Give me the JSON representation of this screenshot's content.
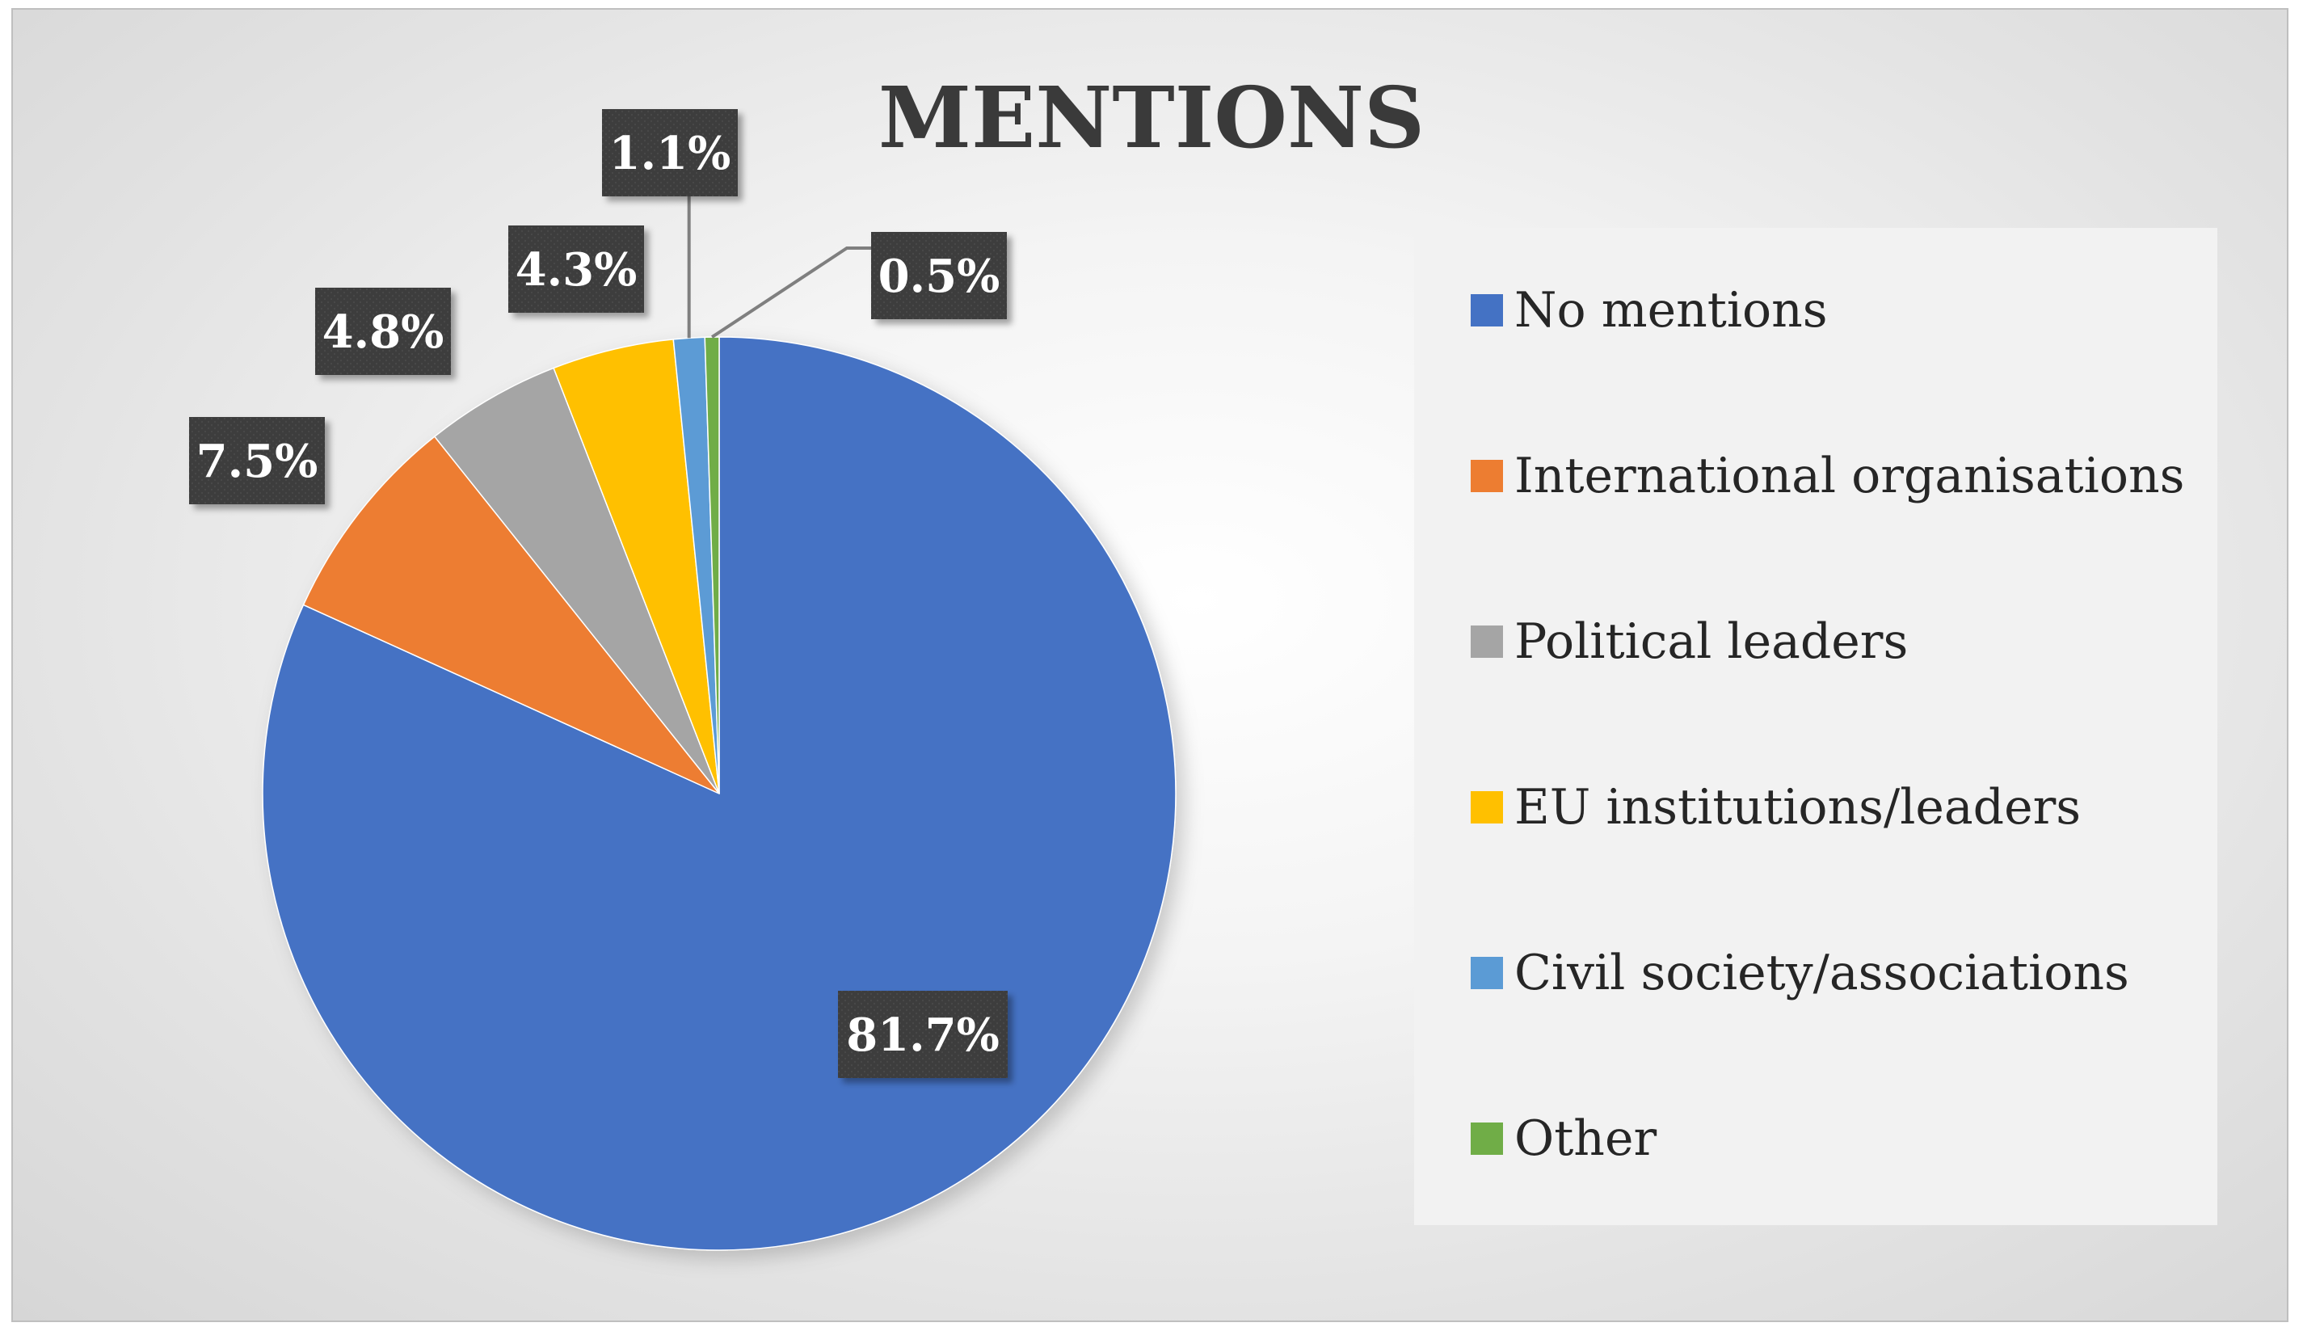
{
  "chart_data": {
    "type": "pie",
    "title": "MENTIONS",
    "categories": [
      "No mentions",
      "International organisations",
      "Political leaders",
      "EU institutions/leaders",
      "Civil society/associations",
      "Other"
    ],
    "values": [
      81.7,
      7.5,
      4.8,
      4.3,
      1.1,
      0.5
    ],
    "labels": [
      "81.7%",
      "7.5%",
      "4.8%",
      "4.3%",
      "1.1%",
      "0.5%"
    ],
    "colors": [
      "#4472c4",
      "#ed7d31",
      "#a5a5a5",
      "#ffc000",
      "#5b9bd5",
      "#70ad47"
    ],
    "start_angle_deg": 0,
    "direction": "clockwise",
    "legend_position": "right",
    "data_label_style": "dark callout boxes with white bold text"
  }
}
